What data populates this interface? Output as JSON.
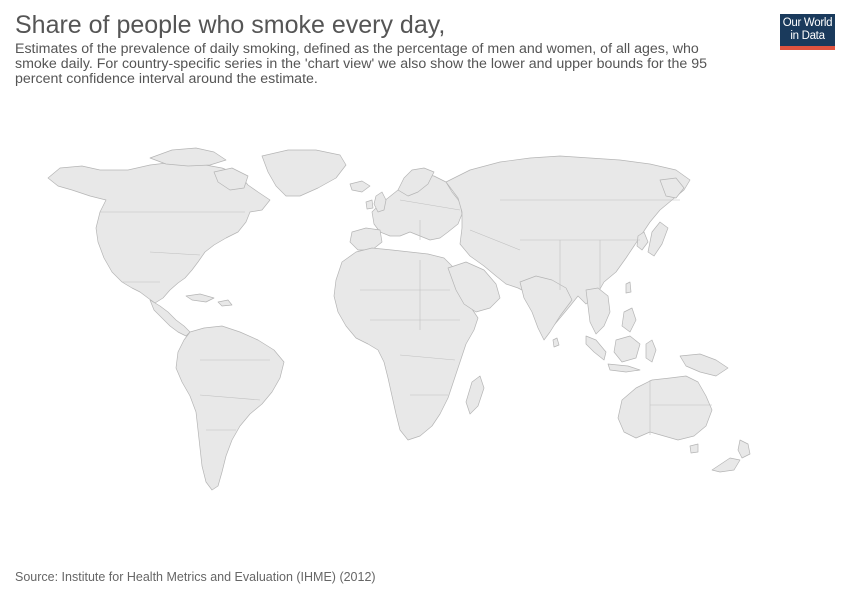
{
  "header": {
    "title": "Share of people who smoke every day,",
    "subtitle": "Estimates of the prevalence of daily smoking, defined as the percentage of men and women, of all ages, who smoke daily. For country-specific series in the 'chart view' we also show the lower and upper bounds for the 95 percent confidence interval around the estimate."
  },
  "logo": {
    "line1": "Our World",
    "line2": "in Data",
    "background_color": "#1a3a5c",
    "accent_color": "#e0533f"
  },
  "map": {
    "type": "world-choropleth",
    "fill_color": "#e8e8e8",
    "border_color": "#b5b5b5",
    "data_shown": false
  },
  "footer": {
    "source": "Source: Institute for Health Metrics and Evaluation (IHME) (2012)"
  }
}
